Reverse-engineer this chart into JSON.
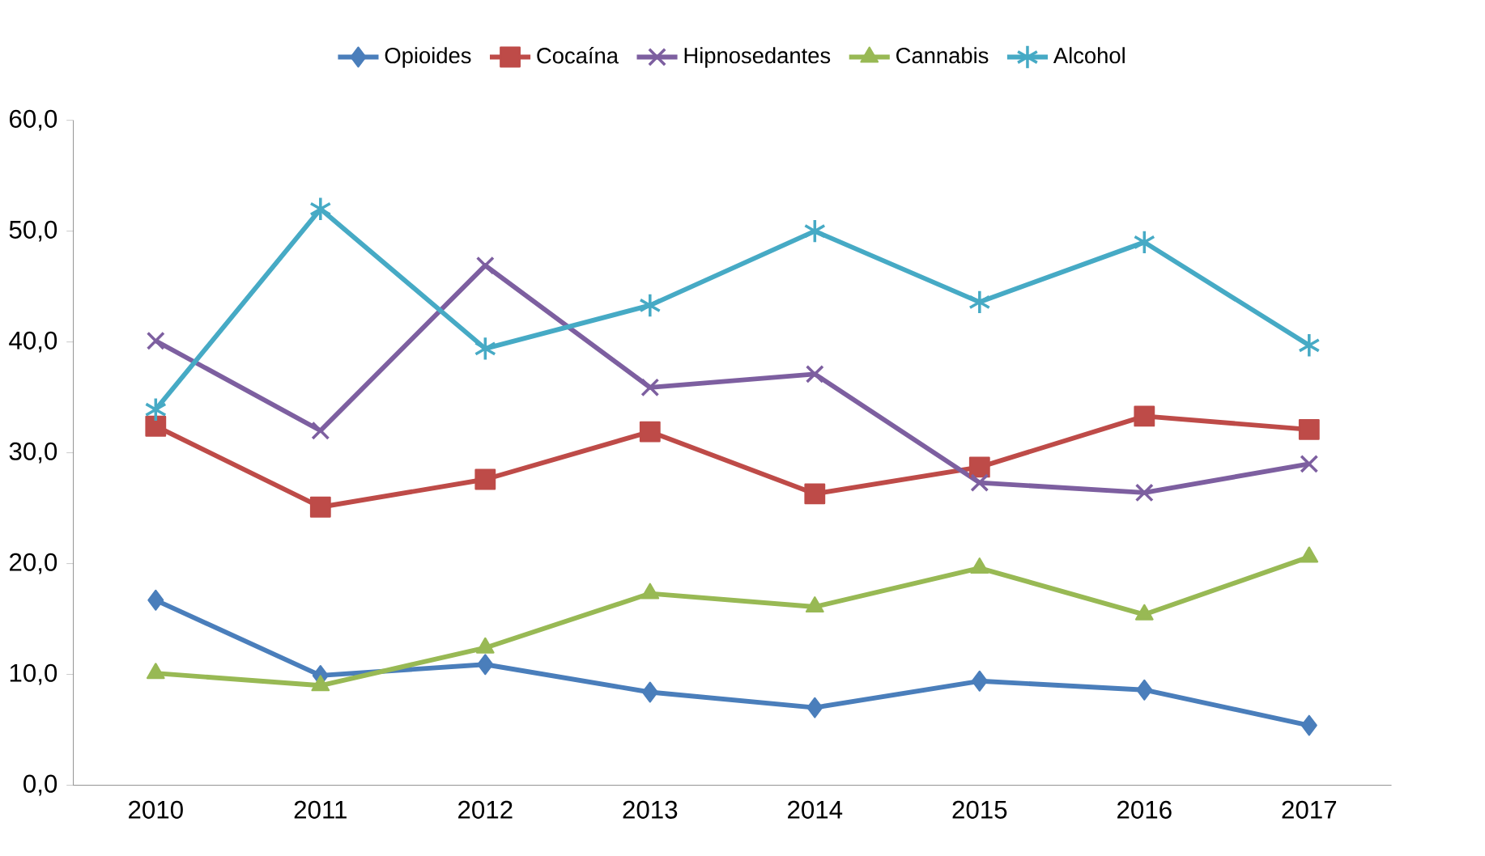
{
  "chart_data": {
    "type": "line",
    "categories": [
      "2010",
      "2011",
      "2012",
      "2013",
      "2014",
      "2015",
      "2016",
      "2017"
    ],
    "series": [
      {
        "name": "Opioides",
        "color": "#4a7ebb",
        "marker": "diamond",
        "values": [
          16.7,
          9.9,
          10.9,
          8.4,
          7.0,
          9.4,
          8.6,
          5.4
        ]
      },
      {
        "name": "Cocaína",
        "color": "#be4b48",
        "marker": "square",
        "values": [
          32.4,
          25.1,
          27.6,
          31.9,
          26.3,
          28.7,
          33.3,
          32.1
        ]
      },
      {
        "name": "Hipnosedantes",
        "color": "#7d5fa0",
        "marker": "cross",
        "values": [
          40.1,
          32.0,
          46.9,
          35.9,
          37.1,
          27.3,
          26.4,
          29.0
        ]
      },
      {
        "name": "Cannabis",
        "color": "#98b954",
        "marker": "triangle",
        "values": [
          10.1,
          9.0,
          12.4,
          17.3,
          16.1,
          19.6,
          15.4,
          20.6
        ]
      },
      {
        "name": "Alcohol",
        "color": "#46aac5",
        "marker": "cross",
        "values": [
          33.9,
          52.0,
          39.4,
          43.3,
          50.0,
          43.6,
          49.0,
          39.7
        ]
      }
    ],
    "ylim": [
      0,
      60
    ],
    "yticks": [
      {
        "value": 0,
        "label": "0,0"
      },
      {
        "value": 10,
        "label": "10,0"
      },
      {
        "value": 20,
        "label": "20,0"
      },
      {
        "value": 30,
        "label": "30,0"
      },
      {
        "value": 40,
        "label": "40,0"
      },
      {
        "value": 50,
        "label": "50,0"
      },
      {
        "value": 60,
        "label": "60,0"
      }
    ],
    "legend": "top",
    "grid": false,
    "line_style": "solid"
  }
}
